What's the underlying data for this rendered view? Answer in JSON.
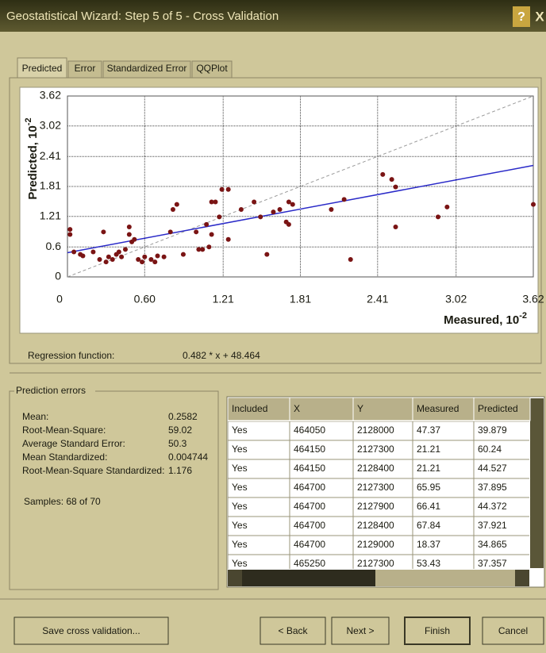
{
  "window": {
    "title": "Geostatistical Wizard: Step 5 of 5 - Cross Validation",
    "help": "?",
    "close": "X"
  },
  "tabs": [
    "Predicted",
    "Error",
    "Standardized Error",
    "QQPlot"
  ],
  "chart": {
    "type": "scatter",
    "x_label": "Measured, 10",
    "x_label_exp": "-2",
    "y_label": "Predicted, 10",
    "y_label_exp": "-2",
    "xlim": [
      0,
      3.62
    ],
    "ylim": [
      0,
      3.62
    ],
    "xticks": [
      0,
      {
        "value": 0.6,
        "label": "0.60"
      },
      1.21,
      1.81,
      2.41,
      3.02,
      3.62
    ],
    "yticks": [
      0,
      0.6,
      1.21,
      1.81,
      2.41,
      3.02,
      3.62
    ],
    "grid": true,
    "color": "#7a1414",
    "x": [
      0.02,
      0.02,
      0.05,
      0.1,
      0.12,
      0.2,
      0.25,
      0.28,
      0.3,
      0.32,
      0.35,
      0.38,
      0.4,
      0.42,
      0.45,
      0.48,
      0.48,
      0.5,
      0.52,
      0.55,
      0.58,
      0.6,
      0.65,
      0.68,
      0.7,
      0.75,
      0.8,
      0.82,
      0.85,
      0.9,
      1.0,
      1.02,
      1.05,
      1.08,
      1.1,
      1.12,
      1.12,
      1.15,
      1.18,
      1.2,
      1.25,
      1.25,
      1.35,
      1.45,
      1.5,
      1.55,
      1.6,
      1.65,
      1.7,
      1.72,
      1.72,
      1.75,
      2.05,
      2.15,
      2.2,
      2.45,
      2.52,
      2.55,
      2.55,
      2.88,
      2.95,
      3.62
    ],
    "y": [
      0.95,
      0.85,
      0.5,
      0.45,
      0.42,
      0.5,
      0.35,
      0.9,
      0.3,
      0.4,
      0.35,
      0.45,
      0.5,
      0.4,
      0.55,
      1.0,
      0.85,
      0.7,
      0.75,
      0.35,
      0.3,
      0.4,
      0.35,
      0.3,
      0.42,
      0.4,
      0.9,
      1.35,
      1.45,
      0.45,
      0.9,
      0.55,
      0.55,
      1.05,
      0.6,
      0.85,
      1.5,
      1.5,
      1.2,
      1.75,
      1.75,
      0.75,
      1.35,
      1.5,
      1.2,
      0.45,
      1.3,
      1.35,
      1.1,
      1.5,
      1.05,
      1.45,
      1.35,
      1.55,
      0.35,
      2.05,
      1.95,
      1.8,
      1.0,
      1.2,
      1.4,
      1.45
    ],
    "reference_line": {
      "x": [
        0,
        3.62
      ],
      "y": [
        0,
        3.62
      ],
      "color": "#9a9a9a"
    },
    "regression_line": {
      "x": [
        0,
        3.62
      ],
      "y": [
        0.485,
        2.23
      ],
      "color": "#2a2ac8"
    }
  },
  "regression": {
    "label": "Regression function:",
    "value": "0.482 * x + 48.464"
  },
  "prediction_errors": {
    "title": "Prediction errors",
    "rows": [
      [
        "Mean:",
        "0.2582"
      ],
      [
        "Root-Mean-Square:",
        "59.02"
      ],
      [
        "Average Standard Error:",
        "50.3"
      ],
      [
        "Mean Standardized:",
        "0.004744"
      ],
      [
        "Root-Mean-Square Standardized:",
        "1.176"
      ]
    ],
    "samples": "Samples: 68 of 70"
  },
  "table": {
    "columns": [
      "Included",
      "X",
      "Y",
      "Measured",
      "Predicted"
    ],
    "rows": [
      [
        "Yes",
        "464050",
        "2128000",
        "47.37",
        "39.879"
      ],
      [
        "Yes",
        "464150",
        "2127300",
        "21.21",
        "60.24"
      ],
      [
        "Yes",
        "464150",
        "2128400",
        "21.21",
        "44.527"
      ],
      [
        "Yes",
        "464700",
        "2127300",
        "65.95",
        "37.895"
      ],
      [
        "Yes",
        "464700",
        "2127900",
        "66.41",
        "44.372"
      ],
      [
        "Yes",
        "464700",
        "2128400",
        "67.84",
        "37.921"
      ],
      [
        "Yes",
        "464700",
        "2129000",
        "18.37",
        "34.865"
      ],
      [
        "Yes",
        "465250",
        "2127300",
        "53.43",
        "37.357"
      ]
    ]
  },
  "buttons": [
    "Save cross validation...",
    "< Back",
    "Next >",
    "Finish",
    "Cancel"
  ]
}
